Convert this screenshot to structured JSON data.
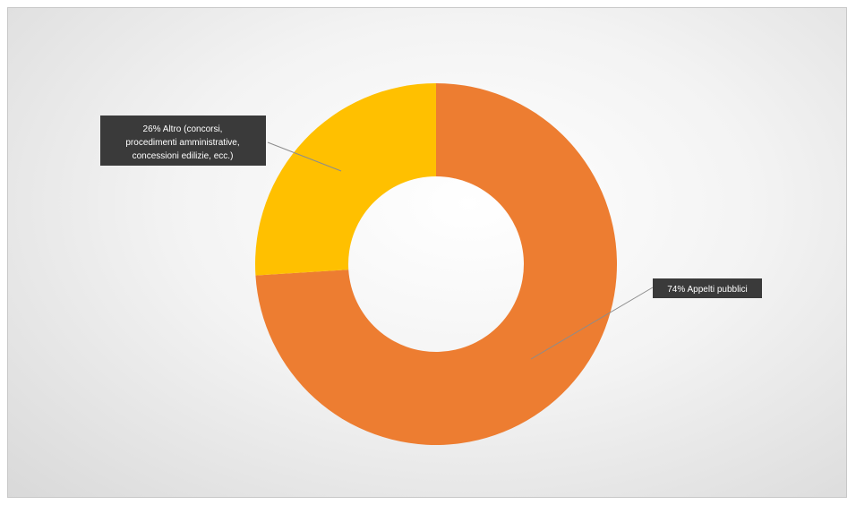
{
  "chart_data": {
    "type": "pie",
    "donut": true,
    "title": "",
    "slices": [
      {
        "label": "Appelti pubblici",
        "value": 74,
        "display": "74% Appelti pubblici",
        "color": "#ED7D31"
      },
      {
        "label": "Altro (concorsi, procedimenti amministrative, concessioni edilizie, ecc.)",
        "value": 26,
        "display_lines": [
          "26% Altro (concorsi,",
          "procedimenti amministrative,",
          "concessioni edilizie, ecc.)"
        ],
        "color": "#FFC000"
      }
    ],
    "legend": "none"
  }
}
